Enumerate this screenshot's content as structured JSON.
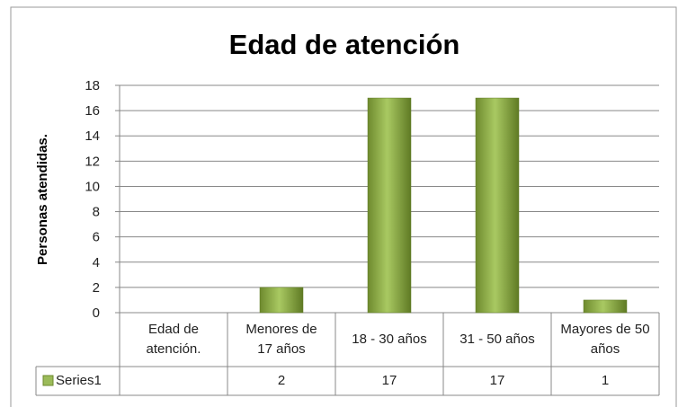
{
  "chart_data": {
    "type": "bar",
    "title": "Edad de atención",
    "ylabel": "Personas atendidas.",
    "categories": [
      "Edad de atención.",
      "Menores de 17 años",
      "18 - 30 años",
      "31 - 50 años",
      "Mayores de 50 años"
    ],
    "series": [
      {
        "name": "Series1",
        "color": "#9bbb59",
        "values": [
          null,
          2,
          17,
          17,
          1
        ]
      }
    ],
    "ylim": [
      0,
      18
    ],
    "yticks": [
      0,
      2,
      4,
      6,
      8,
      10,
      12,
      14,
      16,
      18
    ],
    "grid": true,
    "data_table": true
  }
}
